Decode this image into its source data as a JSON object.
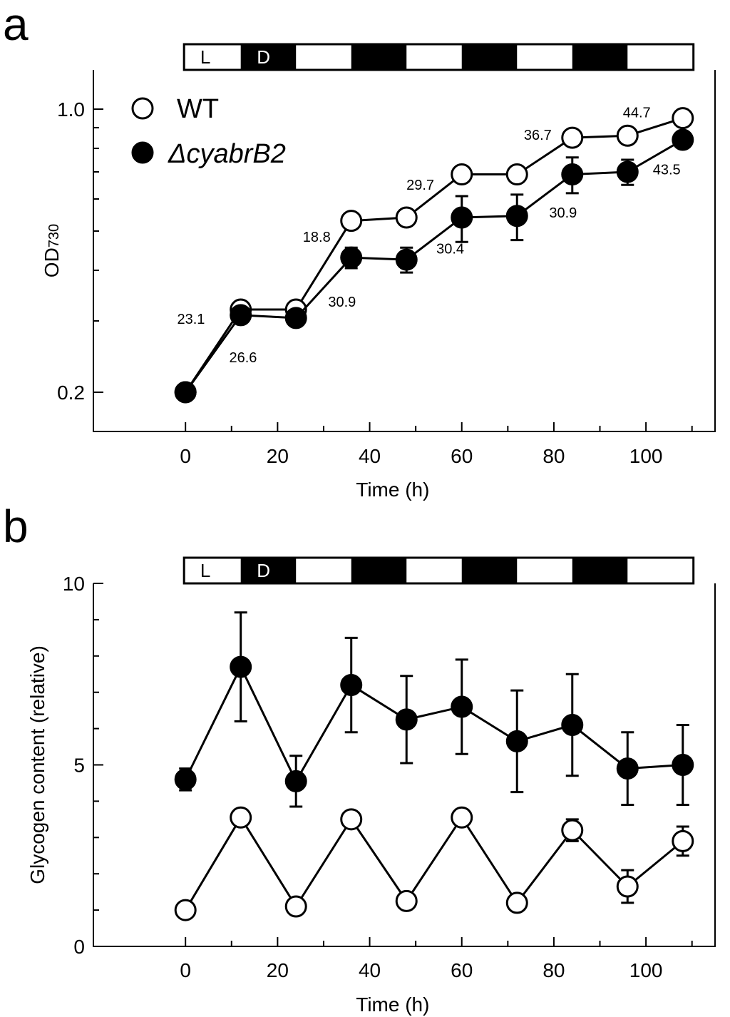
{
  "chart_data": [
    {
      "panel": "a",
      "type": "line",
      "xlabel": "Time (h)",
      "ylabel": "OD",
      "ylabel_sub": "730",
      "yscale": "log",
      "xlim": [
        -20,
        115
      ],
      "ylim": [
        0.16,
        1.25
      ],
      "x_ticks": [
        "0",
        "20",
        "40",
        "60",
        "80",
        "100"
      ],
      "y_ticks": [
        "1.0",
        "0.2"
      ],
      "light_dark_bar": [
        "L",
        "D"
      ],
      "legend": [
        "WT",
        "ΔcyabrB2"
      ],
      "x": [
        0,
        12,
        24,
        36,
        48,
        60,
        72,
        84,
        96,
        108
      ],
      "series": [
        {
          "name": "WT",
          "marker": "open-circle",
          "values": [
            0.2,
            0.32,
            0.32,
            0.53,
            0.54,
            0.69,
            0.69,
            0.85,
            0.86,
            0.95
          ],
          "errors": [
            0,
            0,
            0,
            0,
            0,
            0,
            0,
            0,
            0,
            0
          ]
        },
        {
          "name": "ΔcyabrB2",
          "marker": "filled-circle",
          "values": [
            0.2,
            0.31,
            0.305,
            0.43,
            0.425,
            0.54,
            0.545,
            0.69,
            0.7,
            0.84
          ],
          "errors": [
            0,
            0,
            0,
            0.025,
            0.03,
            0.07,
            0.07,
            0.07,
            0.05,
            0
          ]
        }
      ],
      "annotations": [
        {
          "text": "23.1",
          "x": 1.2,
          "y": 0.295
        },
        {
          "text": "26.6",
          "x": 12.5,
          "y": 0.237
        },
        {
          "text": "18.8",
          "x": 28.5,
          "y": 0.47
        },
        {
          "text": "30.9",
          "x": 34,
          "y": 0.325
        },
        {
          "text": "30.4",
          "x": 57.5,
          "y": 0.44
        },
        {
          "text": "29.7",
          "x": 51,
          "y": 0.633
        },
        {
          "text": "30.9",
          "x": 82,
          "y": 0.54
        },
        {
          "text": "36.7",
          "x": 76.5,
          "y": 0.84
        },
        {
          "text": "44.7",
          "x": 98,
          "y": 0.955
        },
        {
          "text": "43.5",
          "x": 104.5,
          "y": 0.69
        }
      ]
    },
    {
      "panel": "b",
      "type": "line",
      "xlabel": "Time (h)",
      "ylabel": "Glycogen content (relative)",
      "xlim": [
        -20,
        115
      ],
      "ylim": [
        0,
        10
      ],
      "x_ticks": [
        "0",
        "20",
        "40",
        "60",
        "80",
        "100"
      ],
      "y_ticks": [
        "0",
        "5",
        "10"
      ],
      "light_dark_bar": [
        "L",
        "D"
      ],
      "x": [
        0,
        12,
        24,
        36,
        48,
        60,
        72,
        84,
        96,
        108
      ],
      "series": [
        {
          "name": "ΔcyabrB2",
          "marker": "filled-circle",
          "values": [
            4.6,
            7.7,
            4.55,
            7.2,
            6.25,
            6.6,
            5.65,
            6.1,
            4.9,
            5.0
          ],
          "errors": [
            0.3,
            1.5,
            0.7,
            1.3,
            1.2,
            1.3,
            1.4,
            1.4,
            1.0,
            1.1
          ]
        },
        {
          "name": "WT",
          "marker": "open-circle",
          "values": [
            1.0,
            3.55,
            1.1,
            3.5,
            1.25,
            3.55,
            1.2,
            3.2,
            1.65,
            2.9
          ],
          "errors": [
            0,
            0,
            0,
            0,
            0,
            0,
            0,
            0.3,
            0.45,
            0.4
          ]
        }
      ]
    }
  ]
}
